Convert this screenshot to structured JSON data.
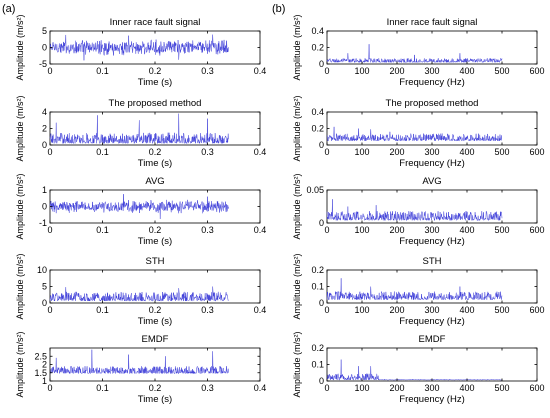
{
  "figure": {
    "panel_labels": [
      "(a)",
      "(b)"
    ]
  },
  "colors": {
    "signal": "#3a3ad8",
    "axis": "#000000",
    "background": "#ffffff"
  },
  "chart_data": [
    {
      "type": "line",
      "column": "a",
      "row": 0,
      "title": "Inner race fault signal",
      "xlabel": "Time (s)",
      "ylabel": "Amplitude (m/s²)",
      "xlim": [
        0,
        0.4
      ],
      "ylim": [
        -5,
        5
      ],
      "xticks": [
        "0",
        "0.1",
        "0.2",
        "0.3",
        "0.4"
      ],
      "yticks": [
        "-5",
        "0",
        "5"
      ],
      "signal_extent": [
        0,
        0.34
      ],
      "envelope": {
        "baseline": 0,
        "spread": 2.6,
        "peaks": [
          {
            "x": 0.03,
            "y": 3.8
          },
          {
            "x": 0.065,
            "y": -3.9
          },
          {
            "x": 0.15,
            "y": 3.6
          },
          {
            "x": 0.245,
            "y": -3.7
          },
          {
            "x": 0.31,
            "y": 3.9
          }
        ]
      }
    },
    {
      "type": "line",
      "column": "b",
      "row": 0,
      "title": "Inner race fault signal",
      "xlabel": "Frequency (Hz)",
      "ylabel": "Amplitude (m/s²)",
      "xlim": [
        0,
        600
      ],
      "ylim": [
        0,
        0.4
      ],
      "xticks": [
        "0",
        "100",
        "200",
        "300",
        "400",
        "500",
        "600"
      ],
      "yticks": [
        "0",
        "0.2",
        "0.4"
      ],
      "signal_extent": [
        0,
        500
      ],
      "envelope": {
        "baseline": 0.02,
        "spread": 0.05,
        "peaks": [
          {
            "x": 60,
            "y": 0.13
          },
          {
            "x": 120,
            "y": 0.24
          },
          {
            "x": 250,
            "y": 0.11
          },
          {
            "x": 380,
            "y": 0.13
          }
        ]
      }
    },
    {
      "type": "line",
      "column": "a",
      "row": 1,
      "title": "The proposed method",
      "xlabel": "Time (s)",
      "ylabel": "Amplitude (m/s²)",
      "xlim": [
        0,
        0.4
      ],
      "ylim": [
        0,
        4
      ],
      "xticks": [
        "0",
        "0.1",
        "0.2",
        "0.3",
        "0.4"
      ],
      "yticks": [
        "0",
        "2",
        "4"
      ],
      "signal_extent": [
        0,
        0.34
      ],
      "envelope": {
        "baseline": 0.2,
        "spread": 1.3,
        "peaks": [
          {
            "x": 0.012,
            "y": 2.7
          },
          {
            "x": 0.09,
            "y": 3.6
          },
          {
            "x": 0.17,
            "y": 3.0
          },
          {
            "x": 0.245,
            "y": 3.8
          },
          {
            "x": 0.3,
            "y": 3.2
          }
        ]
      }
    },
    {
      "type": "line",
      "column": "b",
      "row": 1,
      "title": "The proposed method",
      "xlabel": "Frequency (Hz)",
      "ylabel": "Amplitude (m/s²)",
      "xlim": [
        0,
        600
      ],
      "ylim": [
        0,
        0.4
      ],
      "xticks": [
        "0",
        "100",
        "200",
        "300",
        "400",
        "500",
        "600"
      ],
      "yticks": [
        "0",
        "0.2",
        "0.4"
      ],
      "signal_extent": [
        0,
        500
      ],
      "envelope": {
        "baseline": 0.05,
        "spread": 0.09,
        "peaks": [
          {
            "x": 20,
            "y": 0.22
          },
          {
            "x": 90,
            "y": 0.2
          },
          {
            "x": 125,
            "y": 0.19
          },
          {
            "x": 180,
            "y": 0.16
          }
        ]
      }
    },
    {
      "type": "line",
      "column": "a",
      "row": 2,
      "title": "AVG",
      "xlabel": "Time (s)",
      "ylabel": "Amplitude (m/s²)",
      "xlim": [
        0,
        0.4
      ],
      "ylim": [
        -1,
        1
      ],
      "xticks": [
        "0",
        "0.1",
        "0.2",
        "0.3",
        "0.4"
      ],
      "yticks": [
        "-1",
        "0",
        "1"
      ],
      "signal_extent": [
        0,
        0.34
      ],
      "envelope": {
        "baseline": 0,
        "spread": 0.45,
        "peaks": [
          {
            "x": 0.14,
            "y": 0.75
          },
          {
            "x": 0.21,
            "y": -0.75
          },
          {
            "x": 0.3,
            "y": 0.6
          }
        ]
      }
    },
    {
      "type": "line",
      "column": "b",
      "row": 2,
      "title": "AVG",
      "xlabel": "Frequency (Hz)",
      "ylabel": "Amplitude (m/s²)",
      "xlim": [
        0,
        600
      ],
      "ylim": [
        0,
        0.05
      ],
      "xticks": [
        "0",
        "100",
        "200",
        "300",
        "400",
        "500",
        "600"
      ],
      "yticks": [
        "0",
        "0.05"
      ],
      "signal_extent": [
        0,
        500
      ],
      "envelope": {
        "baseline": 0.004,
        "spread": 0.014,
        "peaks": [
          {
            "x": 15,
            "y": 0.036
          },
          {
            "x": 60,
            "y": 0.025
          },
          {
            "x": 140,
            "y": 0.027
          }
        ]
      }
    },
    {
      "type": "line",
      "column": "a",
      "row": 3,
      "title": "STH",
      "xlabel": "Time (s)",
      "ylabel": "Amplitude (m/s²)",
      "xlim": [
        0,
        0.4
      ],
      "ylim": [
        0,
        10
      ],
      "xticks": [
        "0",
        "0.1",
        "0.2",
        "0.3",
        "0.4"
      ],
      "yticks": [
        "0",
        "5",
        "10"
      ],
      "signal_extent": [
        0,
        0.34
      ],
      "envelope": {
        "baseline": 0.6,
        "spread": 2.8,
        "peaks": [
          {
            "x": 0.03,
            "y": 4.8
          },
          {
            "x": 0.245,
            "y": 4.5
          },
          {
            "x": 0.31,
            "y": 5.0
          }
        ]
      }
    },
    {
      "type": "line",
      "column": "b",
      "row": 3,
      "title": "STH",
      "xlabel": "Frequency (Hz)",
      "ylabel": "Amplitude (m/s²)",
      "xlim": [
        0,
        600
      ],
      "ylim": [
        0,
        0.2
      ],
      "xticks": [
        "0",
        "100",
        "200",
        "300",
        "400",
        "500",
        "600"
      ],
      "yticks": [
        "0",
        "0.1",
        "0.2"
      ],
      "signal_extent": [
        0,
        500
      ],
      "envelope": {
        "baseline": 0.02,
        "spread": 0.05,
        "peaks": [
          {
            "x": 40,
            "y": 0.15
          },
          {
            "x": 125,
            "y": 0.1
          },
          {
            "x": 380,
            "y": 0.1
          }
        ]
      }
    },
    {
      "type": "line",
      "column": "a",
      "row": 4,
      "title": "EMDF",
      "xlabel": "Time (s)",
      "ylabel": "Amplitude (m/s²)",
      "xlim": [
        0,
        0.4
      ],
      "ylim": [
        1,
        3
      ],
      "xticks": [
        "0",
        "0.1",
        "0.2",
        "0.3",
        "0.4"
      ],
      "yticks": [
        "1",
        "1.5",
        "2",
        "2.5"
      ],
      "signal_extent": [
        0,
        0.34
      ],
      "envelope": {
        "baseline": 1.45,
        "spread": 0.45,
        "peaks": [
          {
            "x": 0.012,
            "y": 2.4
          },
          {
            "x": 0.08,
            "y": 2.9
          },
          {
            "x": 0.15,
            "y": 2.6
          },
          {
            "x": 0.22,
            "y": 2.5
          },
          {
            "x": 0.31,
            "y": 2.8
          }
        ]
      }
    },
    {
      "type": "line",
      "column": "b",
      "row": 4,
      "title": "EMDF",
      "xlabel": "Frequency (Hz)",
      "ylabel": "Amplitude (m/s²)",
      "xlim": [
        0,
        600
      ],
      "ylim": [
        0,
        0.2
      ],
      "xticks": [
        "0",
        "100",
        "200",
        "300",
        "400",
        "500",
        "600"
      ],
      "yticks": [
        "0",
        "0.1",
        "0.2"
      ],
      "signal_extent": [
        0,
        500
      ],
      "envelope": {
        "baseline": 0.006,
        "spread": 0.04,
        "cutoff": 150,
        "peaks": [
          {
            "x": 40,
            "y": 0.13
          },
          {
            "x": 90,
            "y": 0.09
          },
          {
            "x": 125,
            "y": 0.09
          }
        ]
      }
    }
  ]
}
